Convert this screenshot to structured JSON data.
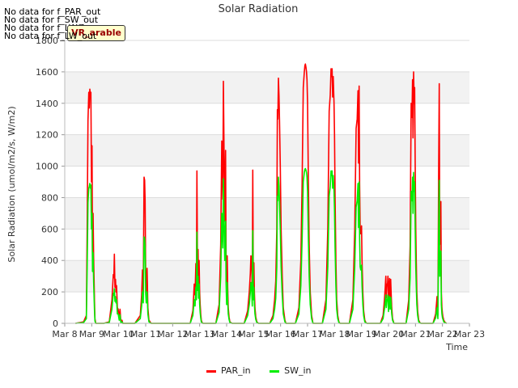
{
  "badge_text": "VR_arable",
  "no_data": [
    "No data for f_PAR_out",
    "No data for f_SW_out",
    "No data for f_LW_in",
    "No data for f_LW_out"
  ],
  "chart_data": {
    "type": "line",
    "title": "Solar Radiation",
    "xlabel": "Time",
    "ylabel": "Solar Radiation (umol/m2/s, W/m2)",
    "xlim": [
      8,
      23
    ],
    "ylim": [
      0,
      1800
    ],
    "x_ticks": [
      8,
      9,
      10,
      11,
      12,
      13,
      14,
      15,
      16,
      17,
      18,
      19,
      20,
      21,
      22,
      23
    ],
    "x_tick_labels": [
      "Mar 8",
      "Mar 9",
      "Mar 10",
      "Mar 11",
      "Mar 12",
      "Mar 13",
      "Mar 14",
      "Mar 15",
      "Mar 16",
      "Mar 17",
      "Mar 18",
      "Mar 19",
      "Mar 20",
      "Mar 21",
      "Mar 22",
      "Mar 23"
    ],
    "y_ticks": [
      0,
      200,
      400,
      600,
      800,
      1000,
      1200,
      1400,
      1600,
      1800
    ],
    "legend_position": "bottom-center",
    "series": [
      {
        "name": "PAR_in",
        "color": "#ff0000",
        "x": [
          8.4,
          8.7,
          8.8,
          8.83,
          8.86,
          8.89,
          8.91,
          8.93,
          8.95,
          8.97,
          8.99,
          9.01,
          9.03,
          9.05,
          9.07,
          9.1,
          9.12,
          9.15,
          9.45,
          9.65,
          9.75,
          9.8,
          9.82,
          9.84,
          9.86,
          9.88,
          9.9,
          9.92,
          9.95,
          9.98,
          10.02,
          10.05,
          10.08,
          10.12,
          10.15,
          10.6,
          10.8,
          10.85,
          10.88,
          10.91,
          10.94,
          10.96,
          10.98,
          11.0,
          11.02,
          11.05,
          11.08,
          11.12,
          11.2,
          12.65,
          12.75,
          12.8,
          12.83,
          12.86,
          12.88,
          12.9,
          12.92,
          12.94,
          12.96,
          12.98,
          13.0,
          13.02,
          13.04,
          13.06,
          13.09,
          13.12,
          13.18,
          13.6,
          13.72,
          13.78,
          13.82,
          13.86,
          13.88,
          13.91,
          13.93,
          13.96,
          13.98,
          14.0,
          14.02,
          14.04,
          14.06,
          14.09,
          14.12,
          14.2,
          14.65,
          14.78,
          14.84,
          14.88,
          14.9,
          14.92,
          14.95,
          14.97,
          14.99,
          15.01,
          15.03,
          15.05,
          15.08,
          15.12,
          15.18,
          15.6,
          15.72,
          15.78,
          15.82,
          15.86,
          15.88,
          15.9,
          15.92,
          15.94,
          15.96,
          15.99,
          16.02,
          16.06,
          16.1,
          16.16,
          16.2,
          16.55,
          16.68,
          16.75,
          16.8,
          16.84,
          16.88,
          16.9,
          16.92,
          16.94,
          16.96,
          16.98,
          17.0,
          17.03,
          17.06,
          17.1,
          17.15,
          17.2,
          17.55,
          17.68,
          17.75,
          17.8,
          17.84,
          17.87,
          17.89,
          17.91,
          17.93,
          17.95,
          17.98,
          18.0,
          18.02,
          18.05,
          18.08,
          18.12,
          18.16,
          18.2,
          18.55,
          18.68,
          18.75,
          18.8,
          18.84,
          18.87,
          18.89,
          18.91,
          18.93,
          18.95,
          18.97,
          19.0,
          19.02,
          19.05,
          19.08,
          19.12,
          19.16,
          19.2,
          19.7,
          19.8,
          19.85,
          19.88,
          19.9,
          19.92,
          19.94,
          19.96,
          19.98,
          20.0,
          20.02,
          20.04,
          20.06,
          20.08,
          20.1,
          20.12,
          20.15,
          20.2,
          20.65,
          20.75,
          20.8,
          20.84,
          20.87,
          20.89,
          20.91,
          20.93,
          20.95,
          20.97,
          20.99,
          21.01,
          21.03,
          21.05,
          21.08,
          21.12,
          21.16,
          21.2,
          21.65,
          21.75,
          21.8,
          21.83,
          21.86,
          21.88,
          21.9,
          21.92,
          21.94,
          21.96,
          21.98,
          22.0,
          22.02,
          22.05,
          22.1,
          22.15
        ],
        "y": [
          0,
          10,
          50,
          600,
          1290,
          1470,
          1370,
          1490,
          1450,
          1470,
          900,
          1130,
          420,
          700,
          420,
          150,
          30,
          0,
          0,
          10,
          150,
          310,
          290,
          440,
          230,
          280,
          200,
          240,
          100,
          90,
          30,
          90,
          10,
          20,
          0,
          0,
          50,
          180,
          340,
          200,
          930,
          910,
          780,
          300,
          200,
          350,
          100,
          20,
          0,
          0,
          80,
          250,
          180,
          380,
          240,
          970,
          350,
          470,
          250,
          400,
          200,
          120,
          60,
          20,
          5,
          0,
          0,
          0,
          120,
          500,
          1160,
          790,
          1540,
          1000,
          650,
          1100,
          430,
          200,
          430,
          230,
          100,
          40,
          10,
          0,
          0,
          80,
          200,
          320,
          430,
          420,
          180,
          975,
          250,
          385,
          200,
          100,
          40,
          10,
          0,
          0,
          50,
          150,
          270,
          600,
          1360,
          1300,
          1560,
          1450,
          1300,
          1000,
          600,
          300,
          100,
          20,
          0,
          0,
          100,
          400,
          900,
          1500,
          1600,
          1640,
          1650,
          1630,
          1600,
          1550,
          1400,
          900,
          500,
          200,
          50,
          0,
          0,
          150,
          600,
          1350,
          1450,
          1620,
          1570,
          1620,
          1440,
          1570,
          1400,
          1200,
          800,
          400,
          150,
          50,
          10,
          0,
          0,
          150,
          600,
          1240,
          1300,
          1480,
          1020,
          1510,
          900,
          600,
          570,
          620,
          400,
          200,
          80,
          20,
          5,
          0,
          0,
          50,
          150,
          230,
          300,
          160,
          250,
          240,
          300,
          120,
          240,
          285,
          150,
          280,
          190,
          100,
          30,
          0,
          0,
          150,
          490,
          1400,
          1310,
          1550,
          1180,
          1600,
          1400,
          1500,
          1000,
          600,
          400,
          200,
          80,
          20,
          5,
          0,
          0,
          60,
          170,
          50,
          1000,
          1525,
          500,
          550,
          775,
          200,
          100,
          60,
          40,
          20,
          5,
          0
        ]
      },
      {
        "name": "SW_in",
        "color": "#00ee00",
        "x": [
          8.4,
          8.7,
          8.8,
          8.83,
          8.86,
          8.89,
          8.91,
          8.93,
          8.95,
          8.97,
          8.99,
          9.01,
          9.03,
          9.05,
          9.07,
          9.1,
          9.12,
          9.15,
          9.45,
          9.65,
          9.75,
          9.8,
          9.82,
          9.84,
          9.86,
          9.88,
          9.9,
          9.92,
          9.95,
          9.98,
          10.02,
          10.05,
          10.08,
          10.12,
          10.15,
          10.6,
          10.8,
          10.85,
          10.88,
          10.91,
          10.94,
          10.96,
          10.98,
          11.0,
          11.02,
          11.05,
          11.08,
          11.12,
          11.2,
          12.65,
          12.75,
          12.8,
          12.83,
          12.86,
          12.88,
          12.9,
          12.92,
          12.94,
          12.96,
          12.98,
          13.0,
          13.02,
          13.04,
          13.06,
          13.09,
          13.12,
          13.18,
          13.6,
          13.72,
          13.78,
          13.82,
          13.86,
          13.88,
          13.91,
          13.93,
          13.96,
          13.98,
          14.0,
          14.02,
          14.04,
          14.06,
          14.09,
          14.12,
          14.2,
          14.65,
          14.78,
          14.84,
          14.88,
          14.9,
          14.92,
          14.95,
          14.97,
          14.99,
          15.01,
          15.03,
          15.05,
          15.08,
          15.12,
          15.18,
          15.6,
          15.72,
          15.78,
          15.82,
          15.86,
          15.88,
          15.9,
          15.92,
          15.94,
          15.96,
          15.99,
          16.02,
          16.06,
          16.1,
          16.16,
          16.2,
          16.55,
          16.68,
          16.75,
          16.8,
          16.84,
          16.88,
          16.9,
          16.92,
          16.94,
          16.96,
          16.98,
          17.0,
          17.03,
          17.06,
          17.1,
          17.15,
          17.2,
          17.55,
          17.68,
          17.75,
          17.8,
          17.84,
          17.87,
          17.89,
          17.91,
          17.93,
          17.95,
          17.98,
          18.0,
          18.02,
          18.05,
          18.08,
          18.12,
          18.16,
          18.2,
          18.55,
          18.68,
          18.75,
          18.8,
          18.84,
          18.87,
          18.89,
          18.91,
          18.93,
          18.95,
          18.97,
          19.0,
          19.02,
          19.05,
          19.08,
          19.12,
          19.16,
          19.2,
          19.7,
          19.8,
          19.85,
          19.88,
          19.9,
          19.92,
          19.94,
          19.96,
          19.98,
          20.0,
          20.02,
          20.04,
          20.06,
          20.08,
          20.1,
          20.12,
          20.15,
          20.2,
          20.65,
          20.75,
          20.8,
          20.84,
          20.87,
          20.89,
          20.91,
          20.93,
          20.95,
          20.97,
          20.99,
          21.01,
          21.03,
          21.05,
          21.08,
          21.12,
          21.16,
          21.2,
          21.65,
          21.75,
          21.8,
          21.83,
          21.86,
          21.88,
          21.9,
          21.92,
          21.94,
          21.96,
          21.98,
          22.0,
          22.02,
          22.05,
          22.1,
          22.15
        ],
        "y": [
          0,
          5,
          30,
          350,
          770,
          860,
          870,
          890,
          860,
          880,
          600,
          700,
          330,
          450,
          260,
          90,
          15,
          0,
          0,
          5,
          90,
          190,
          180,
          220,
          140,
          170,
          130,
          150,
          60,
          60,
          20,
          55,
          5,
          10,
          0,
          0,
          30,
          110,
          200,
          130,
          550,
          540,
          480,
          190,
          130,
          200,
          60,
          10,
          0,
          0,
          50,
          150,
          110,
          230,
          150,
          580,
          210,
          300,
          160,
          250,
          120,
          70,
          35,
          10,
          3,
          0,
          0,
          0,
          70,
          300,
          700,
          480,
          920,
          600,
          400,
          650,
          260,
          120,
          260,
          140,
          60,
          25,
          5,
          0,
          0,
          50,
          120,
          200,
          260,
          250,
          110,
          590,
          150,
          230,
          120,
          60,
          25,
          5,
          0,
          0,
          30,
          90,
          160,
          360,
          810,
          780,
          930,
          870,
          780,
          600,
          360,
          180,
          60,
          10,
          0,
          0,
          60,
          240,
          540,
          900,
          960,
          980,
          985,
          975,
          960,
          930,
          840,
          540,
          300,
          120,
          30,
          0,
          0,
          90,
          360,
          810,
          870,
          970,
          940,
          970,
          860,
          940,
          840,
          720,
          480,
          240,
          90,
          30,
          5,
          0,
          0,
          90,
          360,
          740,
          780,
          890,
          610,
          900,
          540,
          360,
          340,
          370,
          240,
          120,
          50,
          10,
          3,
          0,
          0,
          30,
          90,
          140,
          180,
          100,
          150,
          145,
          180,
          75,
          145,
          170,
          90,
          165,
          115,
          60,
          20,
          0,
          0,
          90,
          290,
          840,
          780,
          930,
          700,
          960,
          840,
          900,
          600,
          360,
          240,
          120,
          50,
          10,
          3,
          0,
          0,
          35,
          100,
          30,
          600,
          910,
          300,
          330,
          460,
          120,
          60,
          35,
          25,
          10,
          3,
          0
        ]
      }
    ]
  }
}
